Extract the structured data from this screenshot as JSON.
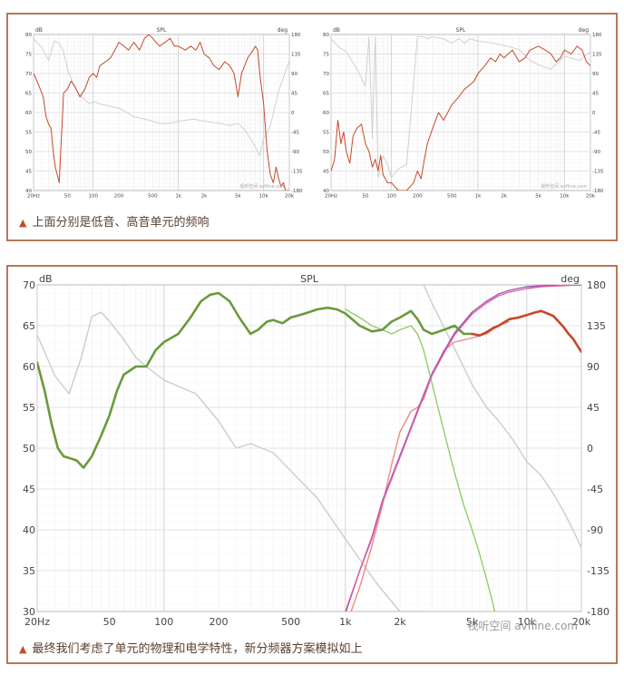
{
  "captions": {
    "top": "上面分别是低音、高音单元的频响",
    "bottom": "最终我们考虑了单元的物理和电学特性，新分频器方案模拟如上"
  },
  "caption_marker": "▲",
  "colors": {
    "frame": "#b5785a",
    "woofer_response": "#c8472b",
    "tweeter_response": "#c8472b",
    "phase": "#cccccc",
    "sum": "#6a9a3c",
    "sum_hot": "#c8472b",
    "woofer_filtered": "#8fcf6b",
    "tweeter_filtered": "#f08a85",
    "phase_pink": "#e05aa0",
    "phase_purple": "#9a5ab8",
    "grid": "#e6e6e6",
    "grid_major": "#c8c8c8"
  },
  "chart_data": [
    {
      "type": "line",
      "title": "SPL",
      "ylabel_left": "dB",
      "ylabel_right": "deg",
      "xscale": "log",
      "xlim": [
        20,
        20000
      ],
      "ylim": [
        40,
        80
      ],
      "ylim_right": [
        -180,
        180
      ],
      "x_ticks": [
        "20Hz",
        "50",
        "100",
        "200",
        "500",
        "1k",
        "2k",
        "5k",
        "10k",
        "20k"
      ],
      "y_ticks": [
        "80",
        "75",
        "70",
        "65",
        "60",
        "55",
        "50",
        "45",
        "40"
      ],
      "y_ticks_right": [
        "180",
        "135",
        "90",
        "45",
        "0",
        "-45",
        "-90",
        "-135",
        "-180"
      ],
      "watermark": "视听空间 avfline.com",
      "series": [
        {
          "role": "magnitude",
          "x": [
            20,
            22,
            24,
            26,
            28,
            30,
            32,
            34,
            36,
            38,
            40,
            45,
            50,
            55,
            60,
            70,
            80,
            90,
            100,
            110,
            120,
            140,
            160,
            180,
            200,
            230,
            260,
            300,
            350,
            400,
            450,
            500,
            600,
            700,
            800,
            900,
            1000,
            1200,
            1400,
            1600,
            1800,
            2000,
            2300,
            2600,
            3000,
            3500,
            4000,
            4500,
            5000,
            5500,
            6000,
            6500,
            7000,
            7500,
            8000,
            8500,
            9000,
            10000,
            11000,
            12000,
            13000,
            14000,
            15000,
            16000,
            17000,
            18000,
            20000
          ],
          "values": [
            70,
            68,
            66,
            64,
            59,
            57,
            56,
            50,
            46,
            44,
            42,
            65,
            66,
            68,
            67,
            64,
            66,
            69,
            70,
            69,
            72,
            73,
            74,
            76,
            78,
            77,
            76,
            78,
            76,
            79,
            80,
            79,
            77,
            78,
            79,
            77,
            77,
            76,
            77,
            76,
            78,
            75,
            74,
            72,
            71,
            73,
            72,
            70,
            64,
            70,
            72,
            74,
            75,
            76,
            77,
            76,
            70,
            62,
            50,
            44,
            42,
            46,
            43,
            41,
            42,
            40,
            40
          ]
        },
        {
          "role": "phase",
          "x": [
            20,
            25,
            30,
            35,
            40,
            45,
            50,
            60,
            70,
            80,
            90,
            100,
            120,
            150,
            200,
            250,
            300,
            400,
            500,
            600,
            800,
            1000,
            1500,
            2000,
            3000,
            4000,
            5000,
            6000,
            7000,
            8000,
            9000,
            10000,
            12000,
            15000,
            20000
          ],
          "values": [
            170,
            150,
            120,
            165,
            160,
            140,
            100,
            60,
            40,
            30,
            20,
            25,
            20,
            15,
            10,
            0,
            -10,
            -15,
            -20,
            -25,
            -25,
            -20,
            -15,
            -20,
            -25,
            -30,
            -25,
            -40,
            -60,
            -80,
            -100,
            -60,
            -30,
            50,
            120
          ]
        }
      ]
    },
    {
      "type": "line",
      "title": "SPL",
      "ylabel_left": "dB",
      "ylabel_right": "deg",
      "xscale": "log",
      "xlim": [
        20,
        20000
      ],
      "ylim": [
        40,
        80
      ],
      "ylim_right": [
        -180,
        180
      ],
      "x_ticks": [
        "20Hz",
        "50",
        "100",
        "200",
        "500",
        "1k",
        "2k",
        "5k",
        "10k",
        "20k"
      ],
      "y_ticks": [
        "80",
        "75",
        "70",
        "65",
        "60",
        "55",
        "50",
        "45",
        "40"
      ],
      "y_ticks_right": [
        "180",
        "135",
        "90",
        "45",
        "0",
        "-45",
        "-90",
        "-135",
        "-180"
      ],
      "watermark": "视听空间 avfline.com",
      "series": [
        {
          "role": "magnitude",
          "x": [
            20,
            22,
            24,
            26,
            28,
            30,
            33,
            36,
            40,
            45,
            50,
            55,
            60,
            65,
            70,
            75,
            80,
            90,
            100,
            120,
            150,
            180,
            200,
            220,
            240,
            260,
            300,
            350,
            400,
            500,
            600,
            700,
            800,
            900,
            1000,
            1200,
            1400,
            1600,
            1800,
            2000,
            2500,
            3000,
            3500,
            4000,
            5000,
            6000,
            7000,
            8000,
            9000,
            10000,
            12000,
            14000,
            16000,
            18000,
            20000
          ],
          "values": [
            45,
            48,
            58,
            52,
            55,
            50,
            47,
            54,
            56,
            57,
            52,
            50,
            46,
            48,
            45,
            49,
            44,
            42,
            42,
            40,
            40,
            42,
            45,
            43,
            48,
            52,
            56,
            60,
            58,
            62,
            64,
            66,
            67,
            68,
            70,
            72,
            74,
            73,
            75,
            74,
            76,
            73,
            74,
            76,
            77,
            76,
            75,
            73,
            74,
            76,
            75,
            77,
            76,
            73,
            72
          ]
        },
        {
          "role": "phase",
          "x": [
            20,
            25,
            30,
            40,
            50,
            55,
            60,
            65,
            70,
            80,
            90,
            100,
            120,
            150,
            200,
            230,
            260,
            300,
            400,
            500,
            600,
            700,
            800,
            1000,
            1500,
            2000,
            3000,
            4000,
            5000,
            7000,
            10000,
            15000,
            20000
          ],
          "values": [
            170,
            150,
            140,
            100,
            60,
            175,
            -60,
            175,
            -150,
            -100,
            -120,
            -150,
            -130,
            -120,
            175,
            175,
            170,
            175,
            170,
            160,
            170,
            160,
            170,
            165,
            160,
            155,
            145,
            120,
            110,
            100,
            130,
            120,
            140
          ]
        }
      ]
    },
    {
      "type": "line",
      "title": "SPL",
      "ylabel_left": "dB",
      "ylabel_right": "deg",
      "xscale": "log",
      "xlim": [
        20,
        20000
      ],
      "ylim": [
        30,
        70
      ],
      "ylim_right": [
        -180,
        180
      ],
      "x_ticks": [
        "20Hz",
        "50",
        "100",
        "200",
        "500",
        "1k",
        "2k",
        "5k",
        "10k",
        "20k"
      ],
      "y_ticks": [
        "70",
        "65",
        "60",
        "55",
        "50",
        "45",
        "40",
        "35",
        "30"
      ],
      "y_ticks_right": [
        "180",
        "135",
        "90",
        "45",
        "0",
        "-45",
        "-90",
        "-135",
        "-180"
      ],
      "watermark": "视听空间 avfline.com",
      "series": [
        {
          "role": "woofer_phase",
          "x": [
            20,
            25,
            30,
            35,
            40,
            45,
            50,
            60,
            70,
            80,
            90,
            100,
            150,
            200,
            250,
            300,
            400,
            500,
            700,
            1000,
            1500,
            2000,
            2500,
            2700
          ],
          "values": [
            125,
            80,
            60,
            100,
            145,
            150,
            140,
            120,
            100,
            90,
            82,
            75,
            60,
            30,
            0,
            5,
            -5,
            -25,
            -55,
            -100,
            -150,
            -180,
            -180,
            -180
          ]
        },
        {
          "role": "tweeter_phase",
          "x": [
            2700,
            3000,
            4000,
            5000,
            6000,
            7000,
            8000,
            9000,
            10000,
            12000,
            14000,
            16000,
            18000,
            20000
          ],
          "values": [
            180,
            160,
            110,
            70,
            45,
            30,
            15,
            0,
            -15,
            -30,
            -50,
            -70,
            -90,
            -110
          ]
        },
        {
          "role": "woofer_filtered",
          "x": [
            1000,
            1200,
            1400,
            1600,
            1800,
            2000,
            2300,
            2500,
            2700,
            3000,
            3500,
            4000,
            4500,
            5000,
            5500,
            6000,
            6500,
            7000
          ],
          "values": [
            67,
            66,
            65,
            64.5,
            64,
            64.5,
            65,
            64,
            62,
            58,
            52,
            47,
            43,
            40,
            37,
            34,
            31,
            28
          ]
        },
        {
          "role": "tweeter_filtered",
          "x": [
            1000,
            1200,
            1400,
            1600,
            1800,
            2000,
            2300,
            2500,
            2700,
            3000,
            3500,
            4000,
            5000,
            6000,
            7000,
            8000
          ],
          "values": [
            28,
            33,
            38,
            43,
            48,
            52,
            54.5,
            55,
            56,
            59,
            62,
            63,
            63.5,
            64,
            65,
            65.5
          ]
        },
        {
          "role": "sum",
          "x": [
            20,
            22,
            24,
            26,
            28,
            30,
            33,
            36,
            40,
            45,
            50,
            55,
            60,
            70,
            80,
            90,
            100,
            120,
            140,
            160,
            180,
            200,
            230,
            260,
            300,
            330,
            370,
            400,
            450,
            500,
            600,
            700,
            800,
            900,
            1000,
            1200,
            1400,
            1600,
            1800,
            2000,
            2300,
            2500,
            2700,
            3000,
            3500,
            4000,
            4500,
            5000
          ],
          "values": [
            60.5,
            57,
            53,
            50,
            49,
            48.8,
            48.5,
            47.6,
            49,
            51.5,
            54,
            57,
            59,
            60,
            60,
            62,
            63,
            64,
            66,
            68,
            68.8,
            69,
            68,
            66,
            64,
            64.5,
            65.5,
            65.7,
            65.3,
            66,
            66.5,
            67,
            67.2,
            67,
            66.5,
            65,
            64.3,
            64.5,
            65.5,
            66,
            66.8,
            65.8,
            64.5,
            64,
            64.5,
            65,
            64,
            64
          ]
        },
        {
          "role": "sum_hot",
          "x": [
            5000,
            5500,
            6000,
            6500,
            7000,
            8000,
            9000,
            10000,
            11000,
            12000,
            13000,
            14000,
            15000,
            16000,
            17000,
            18000,
            20000
          ],
          "values": [
            64,
            63.8,
            64.2,
            64.7,
            65,
            65.8,
            66,
            66.3,
            66.6,
            66.8,
            66.5,
            66.2,
            65.5,
            64.8,
            64,
            63.4,
            61.8
          ]
        },
        {
          "role": "phase_pink",
          "x": [
            1000,
            1200,
            1400,
            1600,
            2000,
            2500,
            3000,
            3500,
            4000,
            5000,
            6000,
            7000,
            8000,
            10000,
            12000,
            15000,
            20000
          ],
          "values": [
            -180,
            -135,
            -100,
            -60,
            -10,
            40,
            80,
            105,
            125,
            148,
            160,
            168,
            172,
            176,
            178,
            179,
            180
          ]
        },
        {
          "role": "phase_purple",
          "x": [
            1000,
            1200,
            1400,
            1600,
            2000,
            2500,
            3000,
            3500,
            4000,
            5000,
            6000,
            7000,
            8000,
            10000,
            12000,
            15000,
            20000
          ],
          "values": [
            -182,
            -135,
            -98,
            -58,
            -8,
            42,
            82,
            107,
            127,
            150,
            162,
            170,
            174,
            178,
            179,
            180,
            180
          ]
        }
      ]
    }
  ]
}
